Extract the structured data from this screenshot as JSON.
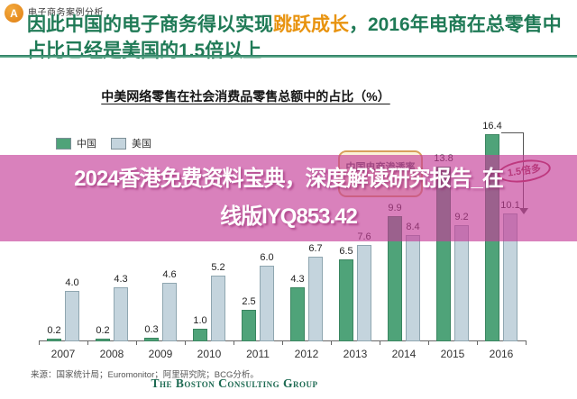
{
  "slide": {
    "badge_label": "A",
    "category": "电子商务案例分析",
    "title": {
      "part1": "因此中国的电子商务得以实现",
      "highlight": "跳跃成长",
      "part2": "，2016年电商在总零售中占比已经是美国的1.5倍以上"
    },
    "title_color": "#1f7a56",
    "highlight_color": "#e8930f"
  },
  "watermark": {
    "line1": "2024香港免费资料宝典，深度解读研究报告_在",
    "line2": "线版IYQ853.42",
    "band_color": "rgba(196,62,152,0.65)",
    "text_color": "#ffffff"
  },
  "chart_data": {
    "type": "bar",
    "title": "中美网络零售在社会消费品零售总额中的占比（%）",
    "categories": [
      "2007",
      "2008",
      "2009",
      "2010",
      "2011",
      "2012",
      "2013",
      "2014",
      "2015",
      "2016"
    ],
    "series": [
      {
        "name": "中国",
        "color": "#4fa379",
        "border": "#3a8560",
        "values": [
          0.2,
          0.2,
          0.3,
          1.0,
          2.5,
          4.3,
          6.5,
          9.9,
          13.8,
          16.4
        ]
      },
      {
        "name": "美国",
        "color": "#c4d4dd",
        "border": "#8fa6b0",
        "values": [
          4.0,
          4.3,
          4.6,
          5.2,
          6.0,
          6.7,
          7.6,
          8.4,
          9.2,
          10.1
        ]
      }
    ],
    "ylim": [
      0,
      17.5
    ],
    "value_labels": true,
    "grid": false,
    "legend_position": "top-left",
    "annotations": {
      "callout": "中国电商渗透率",
      "ellipse_label": "1.5倍多"
    }
  },
  "footer": {
    "source": "来源：国家统计局；Euromonitor；阿里研究院；BCG分析。",
    "logo": "The Boston Consulting Group"
  }
}
